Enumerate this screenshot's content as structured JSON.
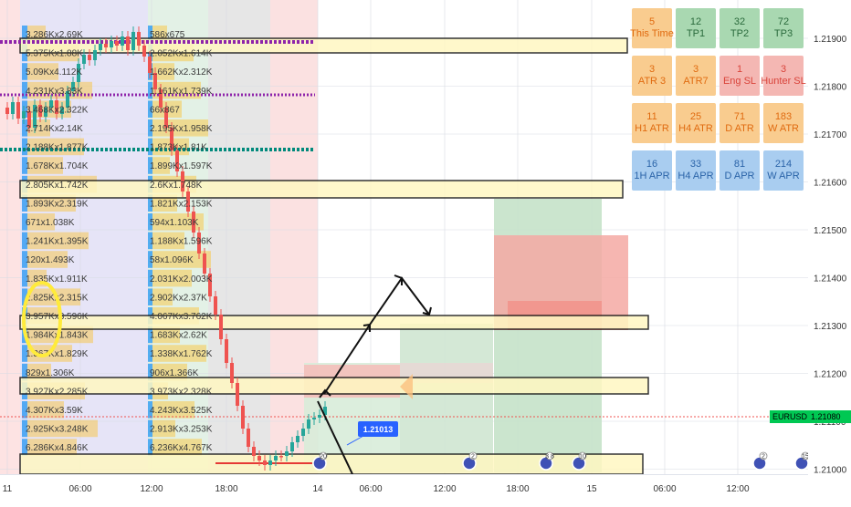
{
  "chart_data": {
    "type": "candlestick",
    "symbol": "EURUSD",
    "last_price_label": "1.21080",
    "marker_price_label": "1.21013",
    "y_ticks": [
      "1.21900",
      "1.21800",
      "1.21700",
      "1.21600",
      "1.21500",
      "1.21400",
      "1.21300",
      "1.21200",
      "1.21100",
      "1.21000"
    ],
    "x_ticks": [
      "11",
      "06:00",
      "12:00",
      "18:00",
      "14",
      "06:00",
      "12:00",
      "18:00",
      "15",
      "06:00",
      "12:00"
    ],
    "colors": {
      "up": "#26a69a",
      "down": "#ef5350",
      "zone_fill": "#fff7c2",
      "arrow": "#111111",
      "price_tag": "#00c853"
    },
    "volume_labels_left": [
      "3.286Kx2.69K",
      "5.375Kx1.88K",
      "5.09Kx4.112K",
      "4.231Kx3.83K",
      "3.468Kx2.322K",
      "2.714Kx2.14K",
      "2.188Kx1.877K",
      "1.678Kx1.704K",
      "2.805Kx1.742K",
      "1.893Kx2.319K",
      "671x1.038K",
      "1.241Kx1.395K",
      "120x1.493K",
      "1.835Kx1.911K",
      "2.825Kx2.315K",
      "3.957Kx3.596K",
      "1.984Kx1.843K",
      "1.367Kx1.829K",
      "829x1.306K",
      "3.927Kx2.285K",
      "4.307Kx3.59K",
      "2.925Kx3.248K",
      "6.286Kx4.846K"
    ],
    "volume_labels_mid": [
      "586x675",
      "2.052Kx1.614K",
      "1.662Kx2.312K",
      "1.161Kx1.739K",
      "66x867",
      "2.195Kx1.958K",
      "1.873Kx1.81K",
      "1.899Kx1.597K",
      "2.6Kx1.748K",
      "1.821Kx2.153K",
      "594x1.103K",
      "1.188Kx1.596K",
      "58x1.096K",
      "2.031Kx2.003K",
      "2.902Kx2.37K",
      "4.067Kx3.762K",
      "1.683Kx2.62K",
      "1.338Kx1.762K",
      "906x1.366K",
      "3.973Kx2.328K",
      "4.243Kx3.525K",
      "2.913Kx3.253K",
      "6.236Kx4.767K"
    ],
    "event_badges": [
      "20",
      "2",
      "3 8",
      "10",
      "2",
      "15"
    ],
    "info_table": [
      [
        {
          "value": "5",
          "label": "This Time",
          "tone": "orange"
        },
        {
          "value": "12",
          "label": "TP1",
          "tone": "green"
        },
        {
          "value": "32",
          "label": "TP2",
          "tone": "green"
        },
        {
          "value": "72",
          "label": "TP3",
          "tone": "green"
        }
      ],
      [
        {
          "value": "3",
          "label": "ATR 3",
          "tone": "orange"
        },
        {
          "value": "3",
          "label": "ATR7",
          "tone": "orange"
        },
        {
          "value": "1",
          "label": "Eng SL",
          "tone": "red"
        },
        {
          "value": "3",
          "label": "Hunter SL",
          "tone": "red"
        }
      ],
      [
        {
          "value": "11",
          "label": "H1 ATR",
          "tone": "orange"
        },
        {
          "value": "25",
          "label": "H4 ATR",
          "tone": "orange"
        },
        {
          "value": "71",
          "label": "D ATR",
          "tone": "orange"
        },
        {
          "value": "183",
          "label": "W ATR",
          "tone": "orange"
        }
      ],
      [
        {
          "value": "16",
          "label": "1H APR",
          "tone": "blue"
        },
        {
          "value": "33",
          "label": "H4 APR",
          "tone": "blue"
        },
        {
          "value": "81",
          "label": "D APR",
          "tone": "blue"
        },
        {
          "value": "214",
          "label": "W APR",
          "tone": "blue"
        }
      ]
    ]
  }
}
